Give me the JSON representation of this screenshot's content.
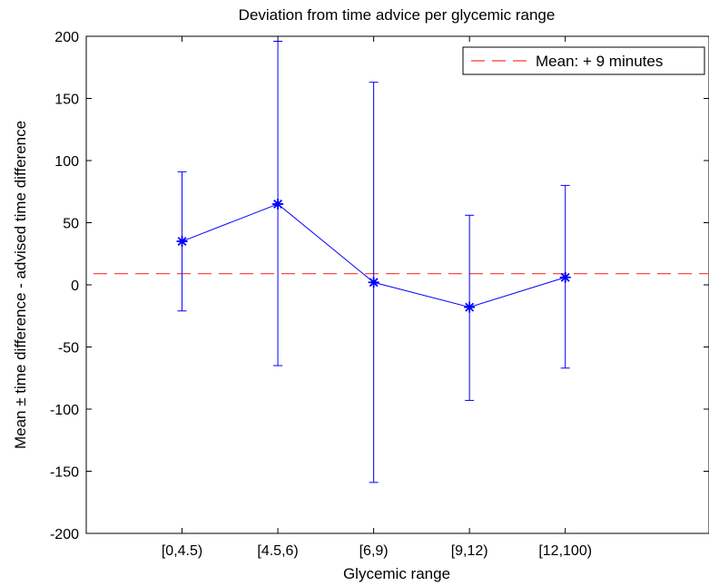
{
  "chart_data": {
    "type": "line",
    "title": "Deviation from time advice per glycemic range",
    "xlabel": "Glycemic range",
    "ylabel": "Mean ± time difference - advised time difference",
    "categories": [
      "[0,4.5)",
      "[4.5,6)",
      "[6,9)",
      "[9,12)",
      "[12,100)"
    ],
    "ylim": [
      -200,
      200
    ],
    "yticks": [
      -200,
      -150,
      -100,
      -50,
      0,
      50,
      100,
      150,
      200
    ],
    "grid": false,
    "legend_position": "top-right",
    "series": [
      {
        "values": [
          35,
          65,
          2,
          -18,
          6
        ],
        "lower": [
          -21,
          -65,
          -159,
          -93,
          -67
        ],
        "upper": [
          91,
          196,
          163,
          56,
          80
        ],
        "color": "#0000ff",
        "marker": "asterisk"
      }
    ],
    "reference_line": {
      "label": "Mean: + 9 minutes",
      "value": 9,
      "color": "#ff3333",
      "style": "dashed"
    }
  }
}
